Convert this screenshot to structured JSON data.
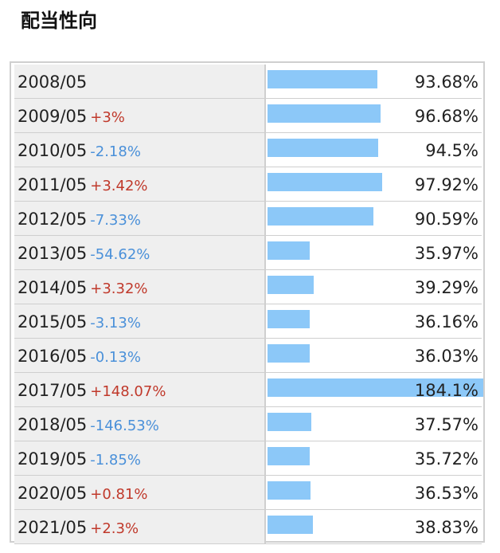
{
  "section": {
    "title": "配当性向"
  },
  "colors": {
    "bar": "#8cc8f8",
    "positive_change": "#c0392b",
    "negative_change": "#4a90d9"
  },
  "rows": [
    {
      "year": "2008/05",
      "change": "",
      "payout_ratio": "93.68%",
      "value": 93.68
    },
    {
      "year": "2009/05",
      "change": "+3%",
      "payout_ratio": "96.68%",
      "value": 96.68
    },
    {
      "year": "2010/05",
      "change": "-2.18%",
      "payout_ratio": "94.5%",
      "value": 94.5
    },
    {
      "year": "2011/05",
      "change": "+3.42%",
      "payout_ratio": "97.92%",
      "value": 97.92
    },
    {
      "year": "2012/05",
      "change": "-7.33%",
      "payout_ratio": "90.59%",
      "value": 90.59
    },
    {
      "year": "2013/05",
      "change": "-54.62%",
      "payout_ratio": "35.97%",
      "value": 35.97
    },
    {
      "year": "2014/05",
      "change": "+3.32%",
      "payout_ratio": "39.29%",
      "value": 39.29
    },
    {
      "year": "2015/05",
      "change": "-3.13%",
      "payout_ratio": "36.16%",
      "value": 36.16
    },
    {
      "year": "2016/05",
      "change": "-0.13%",
      "payout_ratio": "36.03%",
      "value": 36.03
    },
    {
      "year": "2017/05",
      "change": "+148.07%",
      "payout_ratio": "184.1%",
      "value": 184.1
    },
    {
      "year": "2018/05",
      "change": "-146.53%",
      "payout_ratio": "37.57%",
      "value": 37.57
    },
    {
      "year": "2019/05",
      "change": "-1.85%",
      "payout_ratio": "35.72%",
      "value": 35.72
    },
    {
      "year": "2020/05",
      "change": "+0.81%",
      "payout_ratio": "36.53%",
      "value": 36.53
    },
    {
      "year": "2021/05",
      "change": "+2.3%",
      "payout_ratio": "38.83%",
      "value": 38.83
    }
  ]
}
